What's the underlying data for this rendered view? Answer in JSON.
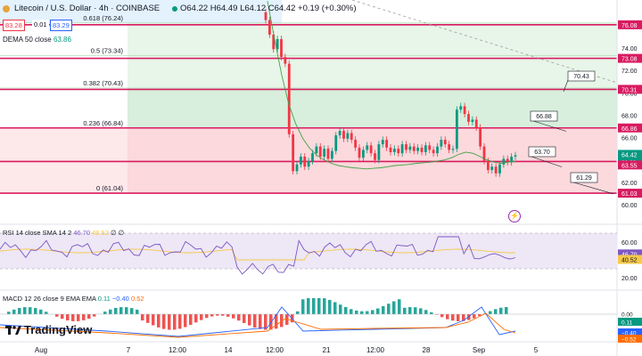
{
  "header": {
    "symbol": "Litecoin / U.S. Dollar · 4h · COINBASE",
    "ohlc": "O64.22 H64.49 L64.12 C64.42 +0.19 (+0.30%)",
    "bid": "83.28",
    "spread": "0.01",
    "ask": "83.29",
    "dema_label": "DEMA 50 close",
    "dema_value": "63.86"
  },
  "brand": "TradingView",
  "chart_data": {
    "type": "candlestick",
    "ylim": [
      60,
      77.5
    ],
    "price_axis_ticks": [
      60.0,
      62.0,
      64.0,
      66.0,
      68.0,
      70.0,
      72.0,
      74.0
    ],
    "x_tick_labels": [
      "Aug",
      "7",
      "12:00",
      "14",
      "12:00",
      "21",
      "12:00",
      "28",
      "Sep",
      "5"
    ],
    "fib_levels": [
      {
        "label": "0.618 (76.24)",
        "value": 76.24
      },
      {
        "label": "0.5 (73.34)",
        "value": 73.34
      },
      {
        "label": "0.382 (70.43)",
        "value": 70.43
      },
      {
        "label": "0.236 (66.84)",
        "value": 66.84
      },
      {
        "label": "0 (61.04)",
        "value": 61.04
      }
    ],
    "horizontal_lines": [
      {
        "value": 76.08,
        "label": "76.08"
      },
      {
        "value": 73.08,
        "label": "73.08"
      },
      {
        "value": 70.31,
        "label": "70.31"
      },
      {
        "value": 66.86,
        "label": "66.86"
      },
      {
        "value": 63.86,
        "label": "63.86"
      },
      {
        "value": 61.03,
        "label": "61.03"
      }
    ],
    "price_labels": [
      {
        "label": "64.42",
        "sub": "02:28"
      },
      {
        "label": "63.55"
      }
    ],
    "callouts": [
      "70.43",
      "66.88",
      "63.70",
      "61.29"
    ],
    "candles_close": [
      76.5,
      75.2,
      73.9,
      74.8,
      73.2,
      72.6,
      66.3,
      63.0,
      63.6,
      64.3,
      63.4,
      63.9,
      64.6,
      65.2,
      64.3,
      65.0,
      64.1,
      64.8,
      66.2,
      66.6,
      65.9,
      66.4,
      65.8,
      65.1,
      64.2,
      64.9,
      65.3,
      64.6,
      64.0,
      65.4,
      65.8,
      65.1,
      64.7,
      65.0,
      64.6,
      65.4,
      64.9,
      65.2,
      64.8,
      65.1,
      64.7,
      65.3,
      64.9,
      64.6,
      65.2,
      65.8,
      65.4,
      64.9,
      65.0,
      68.5,
      68.8,
      68.1,
      67.4,
      67.6,
      66.9,
      65.2,
      63.9,
      63.1,
      63.4,
      62.8,
      63.6,
      64.1,
      63.8,
      64.3,
      64.42
    ],
    "dema_series": [
      78.2,
      74.8,
      71.6,
      69.0,
      67.2,
      65.9,
      65.0,
      64.4,
      64.0,
      63.7,
      63.5,
      63.4,
      63.3,
      63.25,
      63.2,
      63.25,
      63.3,
      63.4,
      63.5,
      63.55,
      63.6,
      63.7,
      63.75,
      63.8,
      63.9,
      64.0,
      64.2,
      64.5,
      64.7,
      64.6,
      64.3,
      64.0,
      63.8,
      63.7,
      63.8,
      63.86
    ],
    "rsi": {
      "label": "RSI 14 close SMA 14 2",
      "value1": "46.70",
      "value2": "40.52",
      "extra": "∅ ∅",
      "axis": [
        "60.00",
        "46.70",
        "40.52",
        "20.00"
      ]
    },
    "macd": {
      "label": "MACD 12 26 close 9 EMA EMA",
      "v1": "0.11",
      "v2": "−0.40",
      "v3": "0.52",
      "axis": [
        "0.11",
        "0.00",
        "−0.40",
        "−0.52"
      ]
    }
  }
}
